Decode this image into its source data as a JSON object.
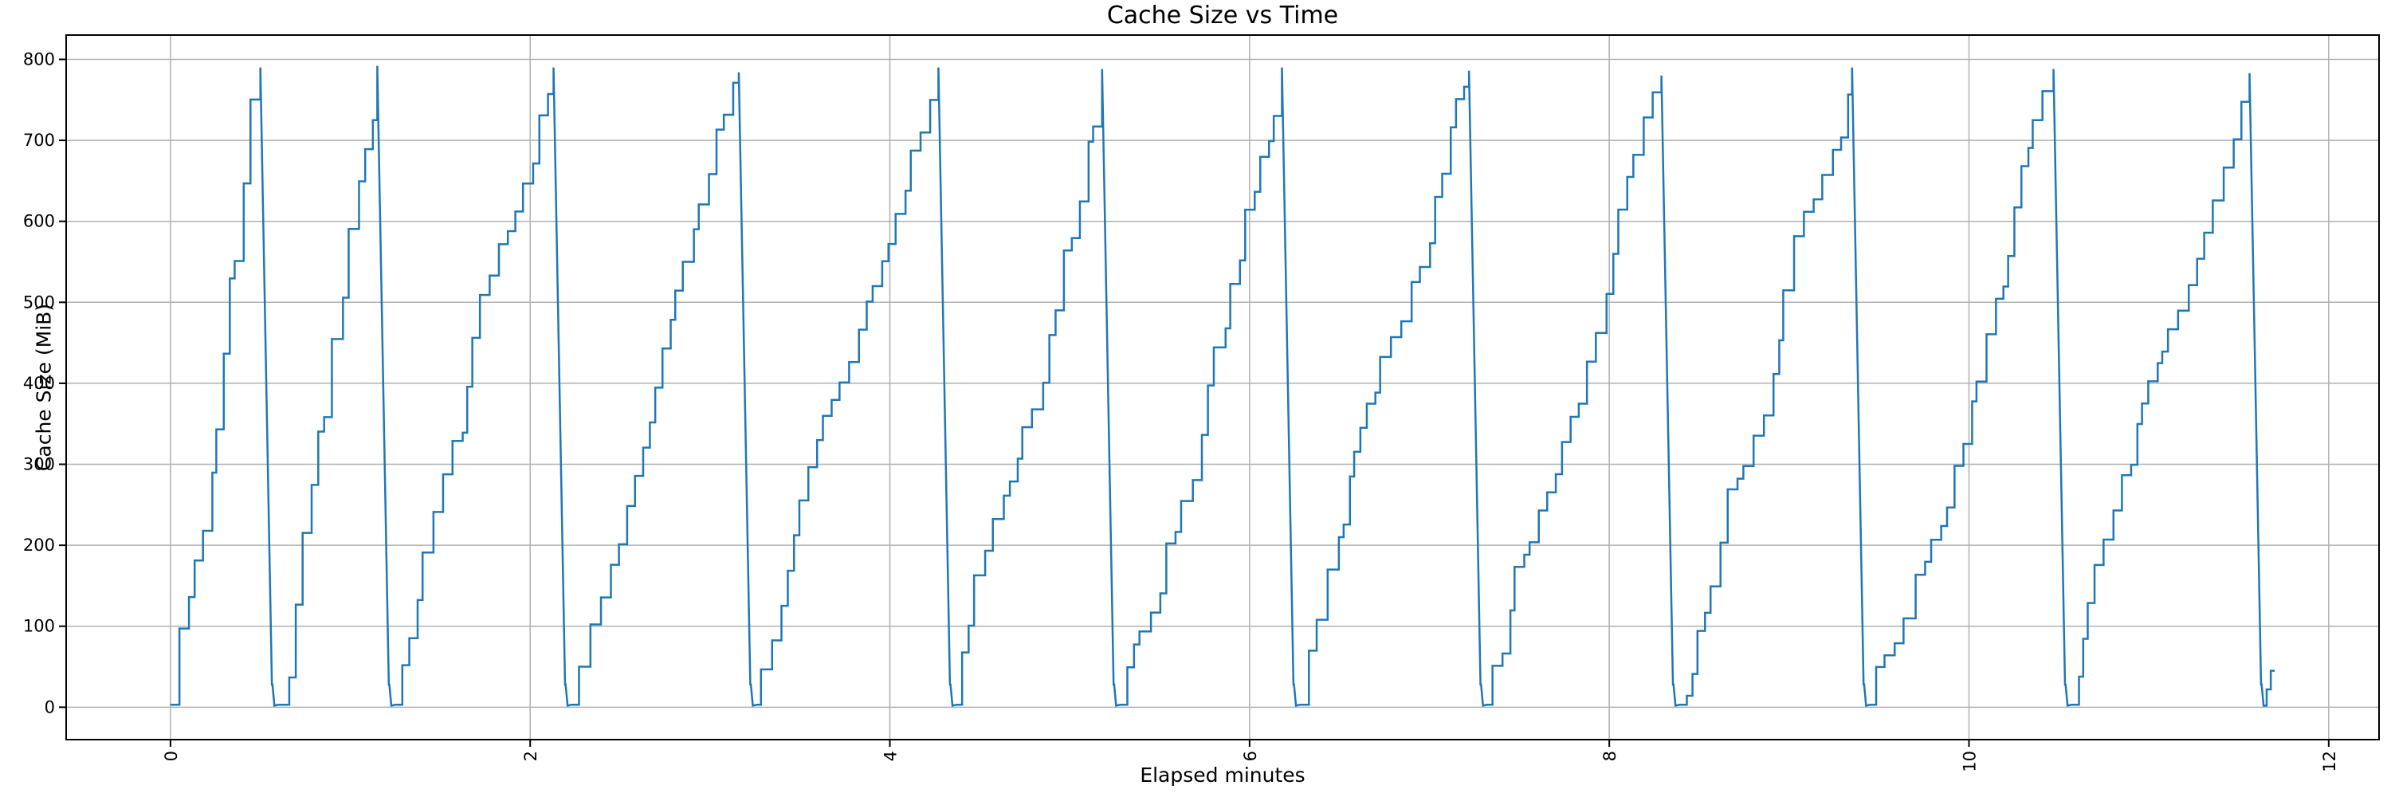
{
  "title": "Cache Size vs Time",
  "chart_data": {
    "type": "line",
    "title": "Cache Size vs Time",
    "xlabel": "Elapsed minutes",
    "ylabel": "Cache Size (MiB)",
    "legend": null,
    "grid": true,
    "grid_color": "#b0b0b0",
    "line_color": "#1f77b4",
    "background_color": "#ffffff",
    "xlim": [
      -0.58,
      12.28
    ],
    "ylim": [
      -40,
      830
    ],
    "xticks": [
      0,
      2,
      4,
      6,
      8,
      10,
      12
    ],
    "yticks": [
      0,
      100,
      200,
      300,
      400,
      500,
      600,
      700,
      800
    ],
    "xtick_rotation_deg": 90,
    "pattern": "sawtooth: staircase ramp from ~0 MiB up to ~790 MiB, then sharp drop back to ~0, repeated 12 times over ~11.7 minutes",
    "cycles": [
      {
        "start_min": 0.0,
        "peak_min": 0.5,
        "peak_mib": 790
      },
      {
        "start_min": 0.6,
        "peak_min": 1.15,
        "peak_mib": 792
      },
      {
        "start_min": 1.25,
        "peak_min": 2.13,
        "peak_mib": 790
      },
      {
        "start_min": 2.23,
        "peak_min": 3.16,
        "peak_mib": 784
      },
      {
        "start_min": 3.26,
        "peak_min": 4.27,
        "peak_mib": 790
      },
      {
        "start_min": 4.37,
        "peak_min": 5.18,
        "peak_mib": 788
      },
      {
        "start_min": 5.28,
        "peak_min": 6.18,
        "peak_mib": 790
      },
      {
        "start_min": 6.28,
        "peak_min": 7.22,
        "peak_mib": 786
      },
      {
        "start_min": 7.32,
        "peak_min": 8.29,
        "peak_mib": 780
      },
      {
        "start_min": 8.39,
        "peak_min": 9.35,
        "peak_mib": 790
      },
      {
        "start_min": 9.45,
        "peak_min": 10.47,
        "peak_mib": 788
      },
      {
        "start_min": 10.57,
        "peak_min": 11.56,
        "peak_mib": 783
      }
    ],
    "drop_duration_min": 0.078,
    "baseline_mib": 3,
    "tail": {
      "flat_from_min": 11.645,
      "steps": [
        [
          11.655,
          22
        ],
        [
          11.678,
          45
        ]
      ],
      "end_min": 11.7,
      "end_mib": 45
    }
  }
}
